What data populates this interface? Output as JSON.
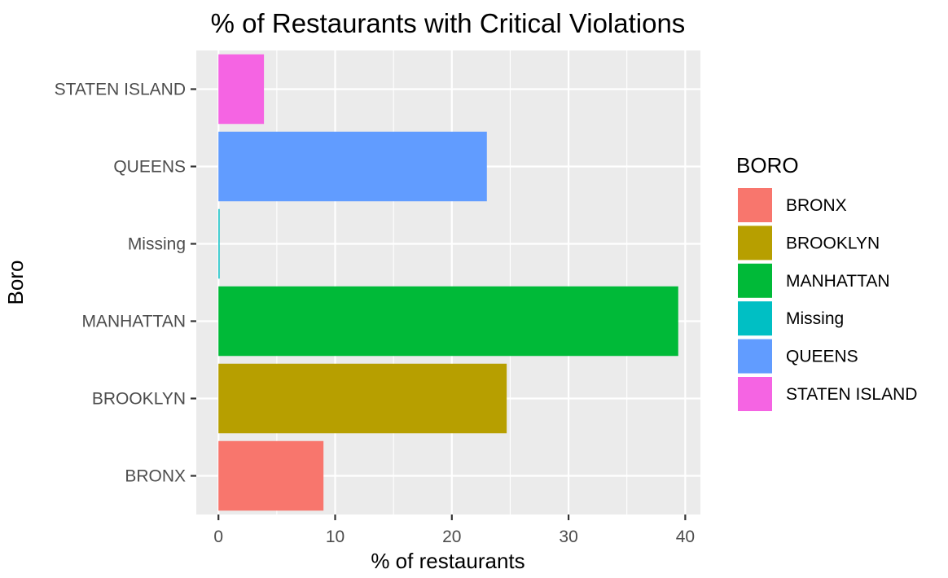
{
  "chart_data": {
    "type": "bar",
    "orientation": "horizontal",
    "title": "% of Restaurants with Critical Violations",
    "xlabel": "% of restaurants",
    "ylabel": "Boro",
    "categories": [
      "BRONX",
      "BROOKLYN",
      "MANHATTAN",
      "Missing",
      "QUEENS",
      "STATEN ISLAND"
    ],
    "values": [
      9.0,
      24.7,
      39.4,
      0.1,
      23.0,
      3.9
    ],
    "colors": [
      "#F8766D",
      "#B79F00",
      "#00BA38",
      "#00BFC4",
      "#619CFF",
      "#F564E3"
    ],
    "xlim": [
      -1.9,
      41.3
    ],
    "x_ticks": [
      0,
      10,
      20,
      30,
      40
    ],
    "x_tick_labels": [
      "0",
      "10",
      "20",
      "30",
      "40"
    ],
    "grid": true,
    "panel_background": "#EBEBEB",
    "grid_color": "#FFFFFF",
    "legend": {
      "title": "BORO",
      "placement": "right",
      "items": [
        "BRONX",
        "BROOKLYN",
        "MANHATTAN",
        "Missing",
        "QUEENS",
        "STATEN ISLAND"
      ]
    }
  }
}
